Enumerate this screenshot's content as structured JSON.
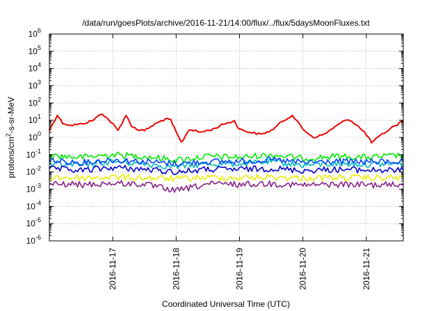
{
  "chart_data": {
    "type": "line",
    "title": "/data/run/goesPlots/archive/2016-11-21/14:00/flux/../flux/5daysMoonFluxes.txt",
    "xlabel": "Coordinated Universal Time (UTC)",
    "ylabel": "protons/cm²-s-sr-MeV",
    "yscale": "log",
    "ylim": [
      1e-06,
      1000000.0
    ],
    "xlim": [
      "2016-11-16T00:00",
      "2016-11-21T14:00"
    ],
    "yticks": [
      {
        "value": 1e-06,
        "exp": "-6"
      },
      {
        "value": 1e-05,
        "exp": "-5"
      },
      {
        "value": 0.0001,
        "exp": "-4"
      },
      {
        "value": 0.001,
        "exp": "-3"
      },
      {
        "value": 0.01,
        "exp": "-2"
      },
      {
        "value": 0.1,
        "exp": "-1"
      },
      {
        "value": 1.0,
        "exp": "0"
      },
      {
        "value": 10.0,
        "exp": "1"
      },
      {
        "value": 100.0,
        "exp": "2"
      },
      {
        "value": 1000.0,
        "exp": "3"
      },
      {
        "value": 10000.0,
        "exp": "4"
      },
      {
        "value": 100000.0,
        "exp": "5"
      },
      {
        "value": 1000000.0,
        "exp": "6"
      }
    ],
    "ytick_base": "10",
    "xticks": [
      "2016-11-17",
      "2016-11-18",
      "2016-11-19",
      "2016-11-20",
      "2016-11-21"
    ],
    "grid": true,
    "legend": "none",
    "series": [
      {
        "color": "#ee0000",
        "x": [
          "2016-11-16T00:00",
          "2016-11-16T03:00",
          "2016-11-16T05:00",
          "2016-11-16T08:00",
          "2016-11-16T12:00",
          "2016-11-16T16:00",
          "2016-11-16T20:00",
          "2016-11-17T00:00",
          "2016-11-17T02:00",
          "2016-11-17T05:00",
          "2016-11-17T07:00",
          "2016-11-17T09:00",
          "2016-11-17T12:00",
          "2016-11-17T16:00",
          "2016-11-17T20:00",
          "2016-11-17T22:00",
          "2016-11-18T00:00",
          "2016-11-18T02:00",
          "2016-11-18T05:00",
          "2016-11-18T09:00",
          "2016-11-18T14:00",
          "2016-11-18T18:00",
          "2016-11-18T22:00",
          "2016-11-19T00:00",
          "2016-11-19T04:00",
          "2016-11-19T08:00",
          "2016-11-19T12:00",
          "2016-11-19T16:00",
          "2016-11-19T20:00",
          "2016-11-20T00:00",
          "2016-11-20T04:00",
          "2016-11-20T08:00",
          "2016-11-20T12:00",
          "2016-11-20T17:00",
          "2016-11-20T20:00",
          "2016-11-21T00:00",
          "2016-11-21T02:00",
          "2016-11-21T06:00",
          "2016-11-21T10:00",
          "2016-11-21T14:00"
        ],
        "y": [
          2.5,
          20,
          7,
          5,
          6,
          9,
          25,
          6,
          2.5,
          20,
          5,
          3,
          2.5,
          6,
          12,
          10,
          2,
          0.5,
          3,
          2,
          3,
          6,
          9,
          3,
          2,
          1.5,
          2.5,
          8,
          20,
          3,
          1,
          1.5,
          4,
          12,
          6,
          1.5,
          0.5,
          1.5,
          4,
          9
        ]
      },
      {
        "color": "#00ee00",
        "x": [
          "2016-11-16T00:00",
          "2016-11-16T12:00",
          "2016-11-17T00:00",
          "2016-11-17T12:00",
          "2016-11-18T00:00",
          "2016-11-18T12:00",
          "2016-11-19T00:00",
          "2016-11-19T12:00",
          "2016-11-20T00:00",
          "2016-11-20T12:00",
          "2016-11-21T00:00",
          "2016-11-21T14:00"
        ],
        "y": [
          0.09,
          0.07,
          0.1,
          0.08,
          0.05,
          0.08,
          0.07,
          0.1,
          0.06,
          0.08,
          0.07,
          0.09
        ]
      },
      {
        "color": "#00bbbb",
        "x": [
          "2016-11-16T00:00",
          "2016-11-16T12:00",
          "2016-11-17T00:00",
          "2016-11-17T12:00",
          "2016-11-18T00:00",
          "2016-11-18T12:00",
          "2016-11-19T00:00",
          "2016-11-19T12:00",
          "2016-11-20T00:00",
          "2016-11-20T12:00",
          "2016-11-21T00:00",
          "2016-11-21T14:00"
        ],
        "y": [
          0.03,
          0.025,
          0.04,
          0.03,
          0.02,
          0.03,
          0.03,
          0.04,
          0.025,
          0.03,
          0.028,
          0.03
        ]
      },
      {
        "color": "#0044ff",
        "x": [
          "2016-11-16T00:00",
          "2016-11-16T12:00",
          "2016-11-17T00:00",
          "2016-11-17T12:00",
          "2016-11-18T00:00",
          "2016-11-18T12:00",
          "2016-11-19T00:00",
          "2016-11-19T12:00",
          "2016-11-20T00:00",
          "2016-11-20T12:00",
          "2016-11-21T00:00",
          "2016-11-21T14:00"
        ],
        "y": [
          0.045,
          0.035,
          0.05,
          0.04,
          0.03,
          0.04,
          0.04,
          0.05,
          0.035,
          0.04,
          0.038,
          0.04
        ]
      },
      {
        "color": "#0000cc",
        "x": [
          "2016-11-16T00:00",
          "2016-11-16T12:00",
          "2016-11-17T00:00",
          "2016-11-17T12:00",
          "2016-11-18T00:00",
          "2016-11-18T12:00",
          "2016-11-19T00:00",
          "2016-11-19T12:00",
          "2016-11-20T00:00",
          "2016-11-20T12:00",
          "2016-11-21T00:00",
          "2016-11-21T14:00"
        ],
        "y": [
          0.015,
          0.012,
          0.018,
          0.014,
          0.01,
          0.014,
          0.014,
          0.016,
          0.012,
          0.014,
          0.013,
          0.012
        ]
      },
      {
        "color": "#eeee00",
        "x": [
          "2016-11-16T00:00",
          "2016-11-16T12:00",
          "2016-11-17T00:00",
          "2016-11-17T12:00",
          "2016-11-18T00:00",
          "2016-11-18T12:00",
          "2016-11-19T00:00",
          "2016-11-19T12:00",
          "2016-11-20T00:00",
          "2016-11-20T12:00",
          "2016-11-21T00:00",
          "2016-11-21T14:00"
        ],
        "y": [
          0.005,
          0.0045,
          0.005,
          0.0045,
          0.004,
          0.0048,
          0.0046,
          0.005,
          0.0044,
          0.0047,
          0.0045,
          0.0046
        ]
      },
      {
        "color": "#882288",
        "x": [
          "2016-11-16T00:00",
          "2016-11-16T12:00",
          "2016-11-17T00:00",
          "2016-11-17T12:00",
          "2016-11-18T00:00",
          "2016-11-18T12:00",
          "2016-11-19T00:00",
          "2016-11-19T12:00",
          "2016-11-20T00:00",
          "2016-11-20T12:00",
          "2016-11-21T00:00",
          "2016-11-21T14:00"
        ],
        "y": [
          0.002,
          0.0018,
          0.0022,
          0.0019,
          0.0008,
          0.002,
          0.0019,
          0.0021,
          0.0017,
          0.0019,
          0.0018,
          0.0018
        ]
      }
    ]
  }
}
